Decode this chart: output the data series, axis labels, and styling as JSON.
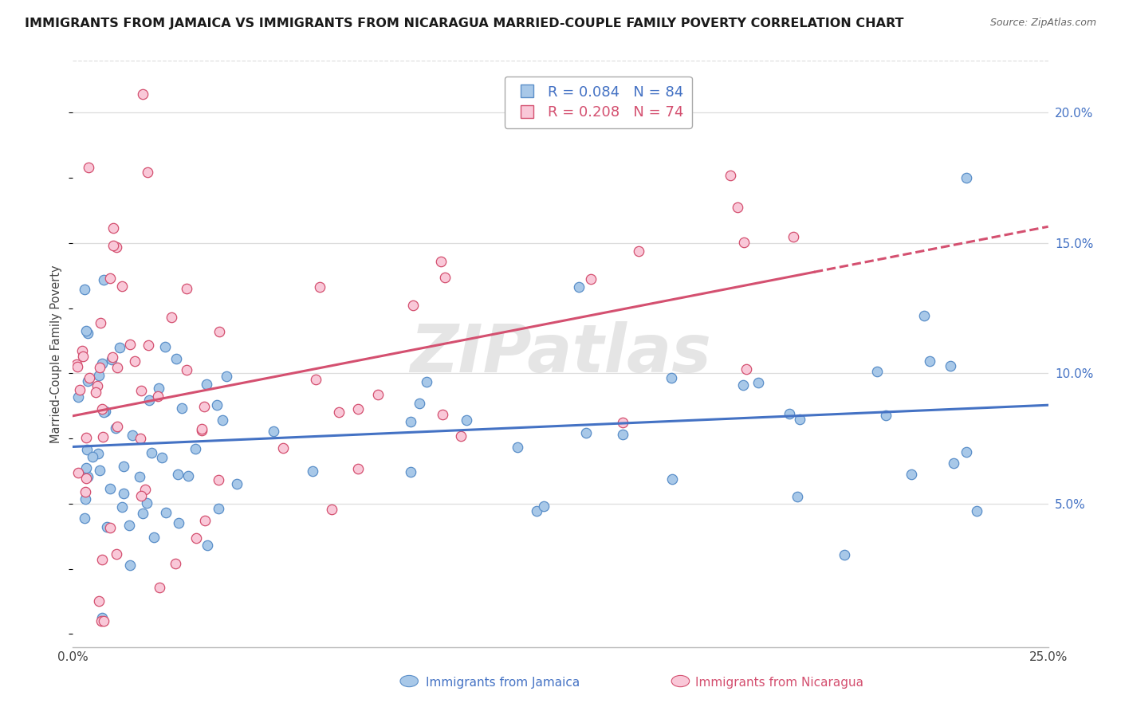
{
  "title": "IMMIGRANTS FROM JAMAICA VS IMMIGRANTS FROM NICARAGUA MARRIED-COUPLE FAMILY POVERTY CORRELATION CHART",
  "source": "Source: ZipAtlas.com",
  "ylabel": "Married-Couple Family Poverty",
  "series": [
    {
      "label": "Immigrants from Jamaica",
      "R": 0.084,
      "N": 84,
      "color": "#a8c8e8",
      "line_color": "#4472c4",
      "edge_color": "#5b8fc9"
    },
    {
      "label": "Immigrants from Nicaragua",
      "R": 0.208,
      "N": 74,
      "color": "#f9c8d8",
      "line_color": "#d45070",
      "edge_color": "#d45070"
    }
  ],
  "xlim": [
    0.0,
    0.25
  ],
  "ylim": [
    -0.005,
    0.22
  ],
  "yticks": [
    0.05,
    0.1,
    0.15,
    0.2
  ],
  "ytick_labels": [
    "5.0%",
    "10.0%",
    "15.0%",
    "20.0%"
  ],
  "grid_color": "#dddddd",
  "background_color": "#ffffff",
  "watermark": "ZIPatlas",
  "title_fontsize": 11.5,
  "marker_size": 80,
  "legend_R1": "R = 0.084",
  "legend_N1": "N = 84",
  "legend_R2": "R = 0.208",
  "legend_N2": "N = 74",
  "legend_color1": "#4472c4",
  "legend_color2": "#d45070"
}
